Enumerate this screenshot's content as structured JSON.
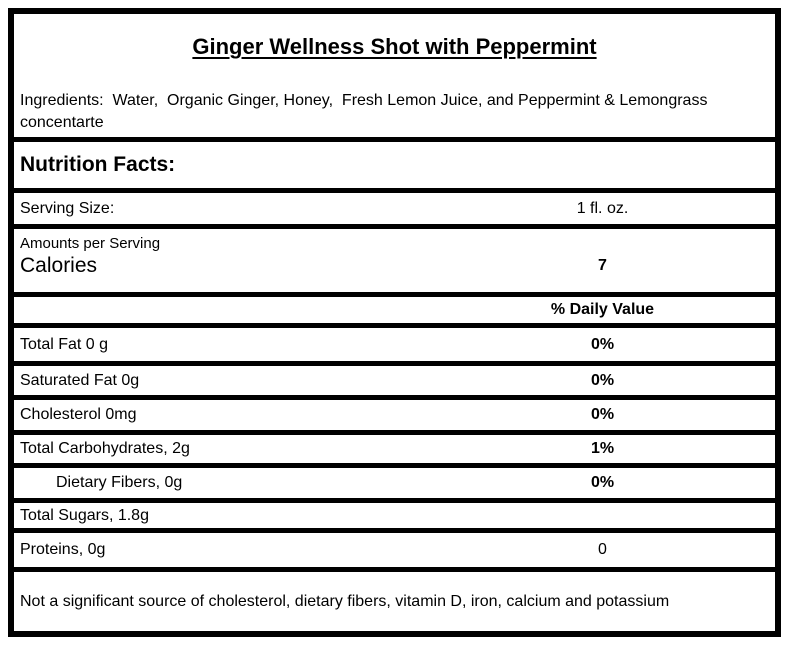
{
  "label": {
    "title": "Ginger Wellness Shot with Peppermint",
    "ingredients": "Ingredients:  Water,  Organic Ginger, Honey,  Fresh Lemon Juice, and Peppermint & Lemongrass concentarte",
    "section_header": "Nutrition Facts:",
    "serving": {
      "label": "Serving Size:",
      "value": "1 fl. oz."
    },
    "amounts_per_serving": "Amounts per Serving",
    "calories": {
      "label": "Calories",
      "value": "7"
    },
    "daily_value_header": "% Daily Value",
    "rows": [
      {
        "name": "Total Fat 0 g",
        "value": "0%"
      },
      {
        "name": "Saturated Fat 0g",
        "value": "0%"
      },
      {
        "name": "Cholesterol 0mg",
        "value": "0%"
      },
      {
        "name": "Total Carbohydrates, 2g",
        "value": "1%"
      },
      {
        "name": "Dietary Fibers, 0g",
        "value": "0%"
      },
      {
        "name": "Total Sugars, 1.8g",
        "value": ""
      },
      {
        "name": "Proteins, 0g",
        "value": "0"
      }
    ],
    "footnote": "Not a significant source of cholesterol, dietary fibers, vitamin D, iron, calcium and potassium",
    "colors": {
      "border": "#000000",
      "background": "#ffffff",
      "text": "#000000"
    }
  }
}
